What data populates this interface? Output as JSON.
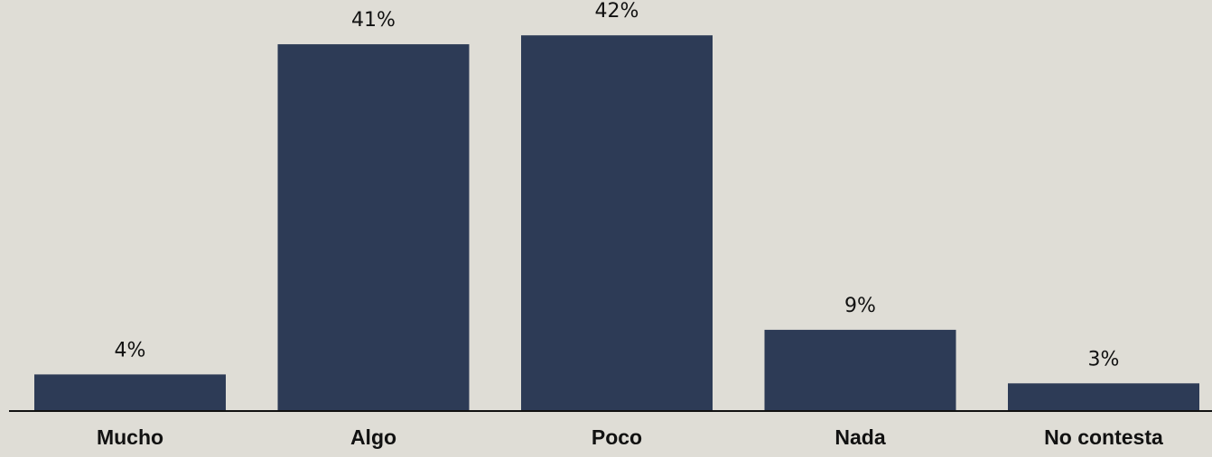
{
  "chart_data": {
    "type": "bar",
    "categories": [
      "Mucho",
      "Algo",
      "Poco",
      "Nada",
      "No contesta"
    ],
    "values": [
      4,
      41,
      42,
      9,
      3
    ],
    "value_labels": [
      "4%",
      "41%",
      "42%",
      "9%",
      "3%"
    ],
    "title": "",
    "xlabel": "",
    "ylabel": "",
    "ylim": [
      0,
      42
    ],
    "grid": false,
    "legend": "none",
    "bar_color": "#2d3b56",
    "background_color": "#dfddd6",
    "axis_color": "#111111"
  }
}
